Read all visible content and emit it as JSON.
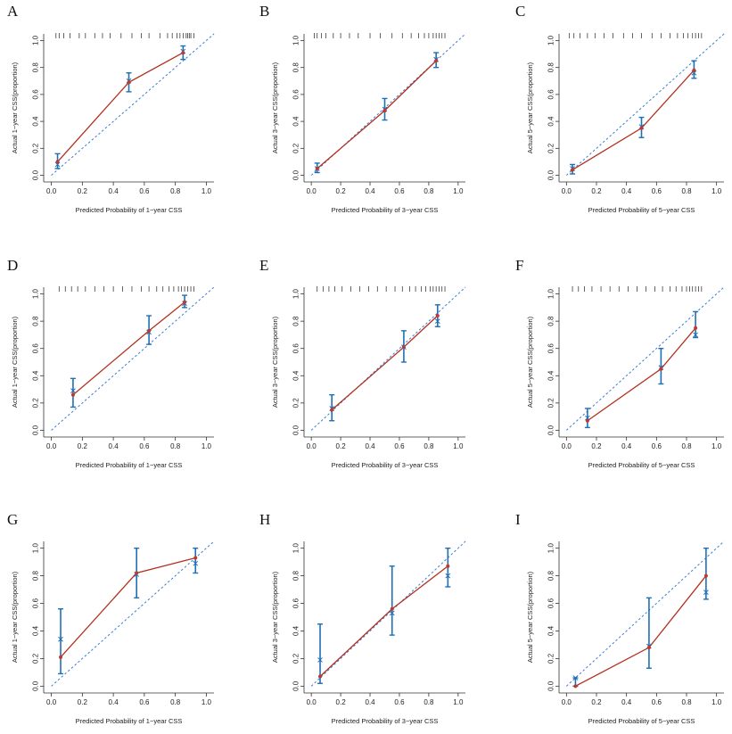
{
  "figure": {
    "colors": {
      "ideal": "#3a7bd5",
      "observed": "#b2301e",
      "point": "#c0392b",
      "errorbar": "#1f6fb5",
      "cross": "#1f6fb5",
      "axis": "#333333"
    },
    "tick_values": [
      "0.0",
      "0.2",
      "0.4",
      "0.6",
      "0.8",
      "1.0"
    ]
  },
  "chart_data": [
    {
      "panel": "A",
      "type": "line",
      "xlabel": "Predicted Probability of 1−year CSS",
      "ylabel": "Actual 1−year CSS(proportion)",
      "xlim": [
        0,
        1
      ],
      "ylim": [
        0,
        1
      ],
      "x": [
        0.04,
        0.5,
        0.85
      ],
      "y": [
        0.1,
        0.69,
        0.91
      ],
      "corrected": [
        0.08,
        0.7,
        0.92
      ],
      "ci_low": [
        0.05,
        0.62,
        0.86
      ],
      "ci_high": [
        0.16,
        0.76,
        0.96
      ],
      "rug": [
        0.03,
        0.05,
        0.08,
        0.12,
        0.18,
        0.22,
        0.28,
        0.33,
        0.38,
        0.45,
        0.52,
        0.58,
        0.63,
        0.7,
        0.75,
        0.78,
        0.81,
        0.83,
        0.85,
        0.87,
        0.88,
        0.89,
        0.9,
        0.92
      ]
    },
    {
      "panel": "B",
      "type": "line",
      "xlabel": "Predicted Probability of 3−year CSS",
      "ylabel": "Actual 3−year CSS(proportion)",
      "xlim": [
        0,
        1
      ],
      "ylim": [
        0,
        1
      ],
      "x": [
        0.04,
        0.5,
        0.85
      ],
      "y": [
        0.05,
        0.48,
        0.85
      ],
      "corrected": [
        0.05,
        0.49,
        0.86
      ],
      "ci_low": [
        0.02,
        0.41,
        0.8
      ],
      "ci_high": [
        0.09,
        0.57,
        0.91
      ],
      "rug": [
        0.02,
        0.04,
        0.07,
        0.1,
        0.15,
        0.2,
        0.26,
        0.32,
        0.4,
        0.47,
        0.55,
        0.62,
        0.68,
        0.73,
        0.77,
        0.8,
        0.83,
        0.85,
        0.87,
        0.89,
        0.91
      ]
    },
    {
      "panel": "C",
      "type": "line",
      "xlabel": "Predicted Probability of 5−year CSS",
      "ylabel": "Actual 5−year CSS(proportion)",
      "xlim": [
        0,
        1
      ],
      "ylim": [
        0,
        1
      ],
      "x": [
        0.04,
        0.5,
        0.85
      ],
      "y": [
        0.04,
        0.35,
        0.78
      ],
      "corrected": [
        0.05,
        0.36,
        0.76
      ],
      "ci_low": [
        0.01,
        0.28,
        0.72
      ],
      "ci_high": [
        0.08,
        0.43,
        0.85
      ],
      "rug": [
        0.02,
        0.05,
        0.09,
        0.14,
        0.19,
        0.25,
        0.31,
        0.38,
        0.44,
        0.5,
        0.57,
        0.63,
        0.69,
        0.74,
        0.78,
        0.81,
        0.84,
        0.86,
        0.88,
        0.9
      ]
    },
    {
      "panel": "D",
      "type": "line",
      "xlabel": "Predicted Probability of 1−year CSS",
      "ylabel": "Actual 1−year CSS(proportion)",
      "xlim": [
        0,
        1
      ],
      "ylim": [
        0,
        1
      ],
      "x": [
        0.14,
        0.63,
        0.86
      ],
      "y": [
        0.26,
        0.73,
        0.94
      ],
      "corrected": [
        0.29,
        0.72,
        0.93
      ],
      "ci_low": [
        0.17,
        0.63,
        0.9
      ],
      "ci_high": [
        0.38,
        0.84,
        0.99
      ],
      "rug": [
        0.05,
        0.09,
        0.13,
        0.17,
        0.22,
        0.28,
        0.34,
        0.4,
        0.46,
        0.52,
        0.58,
        0.63,
        0.68,
        0.72,
        0.76,
        0.79,
        0.82,
        0.84,
        0.86,
        0.88,
        0.9,
        0.92
      ]
    },
    {
      "panel": "E",
      "type": "line",
      "xlabel": "Predicted Probability of 3−year CSS",
      "ylabel": "Actual 3−year CSS(proportion)",
      "xlim": [
        0,
        1
      ],
      "ylim": [
        0,
        1
      ],
      "x": [
        0.14,
        0.63,
        0.86
      ],
      "y": [
        0.15,
        0.61,
        0.84
      ],
      "corrected": [
        0.16,
        0.61,
        0.8
      ],
      "ci_low": [
        0.07,
        0.5,
        0.76
      ],
      "ci_high": [
        0.26,
        0.73,
        0.92
      ],
      "rug": [
        0.04,
        0.08,
        0.12,
        0.16,
        0.21,
        0.27,
        0.33,
        0.39,
        0.45,
        0.51,
        0.57,
        0.62,
        0.67,
        0.71,
        0.75,
        0.78,
        0.81,
        0.83,
        0.85,
        0.87,
        0.89,
        0.91
      ]
    },
    {
      "panel": "F",
      "type": "line",
      "xlabel": "Predicted Probability of 5−year CSS",
      "ylabel": "Actual 5−year CSS(proportion)",
      "xlim": [
        0,
        1
      ],
      "ylim": [
        0,
        1
      ],
      "x": [
        0.14,
        0.63,
        0.86
      ],
      "y": [
        0.07,
        0.45,
        0.75
      ],
      "corrected": [
        0.09,
        0.46,
        0.7
      ],
      "ci_low": [
        0.02,
        0.34,
        0.68
      ],
      "ci_high": [
        0.16,
        0.6,
        0.87
      ],
      "rug": [
        0.04,
        0.08,
        0.12,
        0.17,
        0.23,
        0.29,
        0.35,
        0.41,
        0.47,
        0.53,
        0.59,
        0.64,
        0.69,
        0.73,
        0.77,
        0.8,
        0.82,
        0.84,
        0.86,
        0.88,
        0.9
      ]
    },
    {
      "panel": "G",
      "type": "line",
      "xlabel": "Predicted Probability of 1−year CSS",
      "ylabel": "Actual 1−year CSS(proportion)",
      "xlim": [
        0,
        1
      ],
      "ylim": [
        0,
        1
      ],
      "x": [
        0.06,
        0.55,
        0.93
      ],
      "y": [
        0.21,
        0.82,
        0.93
      ],
      "corrected": [
        0.34,
        0.81,
        0.89
      ],
      "ci_low": [
        0.09,
        0.64,
        0.82
      ],
      "ci_high": [
        0.56,
        1.0,
        1.0
      ],
      "rug": []
    },
    {
      "panel": "H",
      "type": "line",
      "xlabel": "Predicted Probability of 3−year CSS",
      "ylabel": "Actual 3−year CSS(proportion)",
      "xlim": [
        0,
        1
      ],
      "ylim": [
        0,
        1
      ],
      "x": [
        0.06,
        0.55,
        0.93
      ],
      "y": [
        0.07,
        0.56,
        0.87
      ],
      "corrected": [
        0.19,
        0.53,
        0.8
      ],
      "ci_low": [
        0.02,
        0.37,
        0.72
      ],
      "ci_high": [
        0.45,
        0.87,
        1.0
      ],
      "rug": []
    },
    {
      "panel": "I",
      "type": "line",
      "xlabel": "Predicted Probability of 5−year CSS",
      "ylabel": "Actual 5−year CSS(proportion)",
      "xlim": [
        0,
        1
      ],
      "ylim": [
        0,
        1
      ],
      "x": [
        0.06,
        0.55,
        0.93
      ],
      "y": [
        0.0,
        0.28,
        0.8
      ],
      "corrected": [
        0.06,
        0.29,
        0.68
      ],
      "ci_low": [
        0.0,
        0.13,
        0.63
      ],
      "ci_high": [
        0.06,
        0.64,
        1.0
      ],
      "rug": []
    }
  ]
}
